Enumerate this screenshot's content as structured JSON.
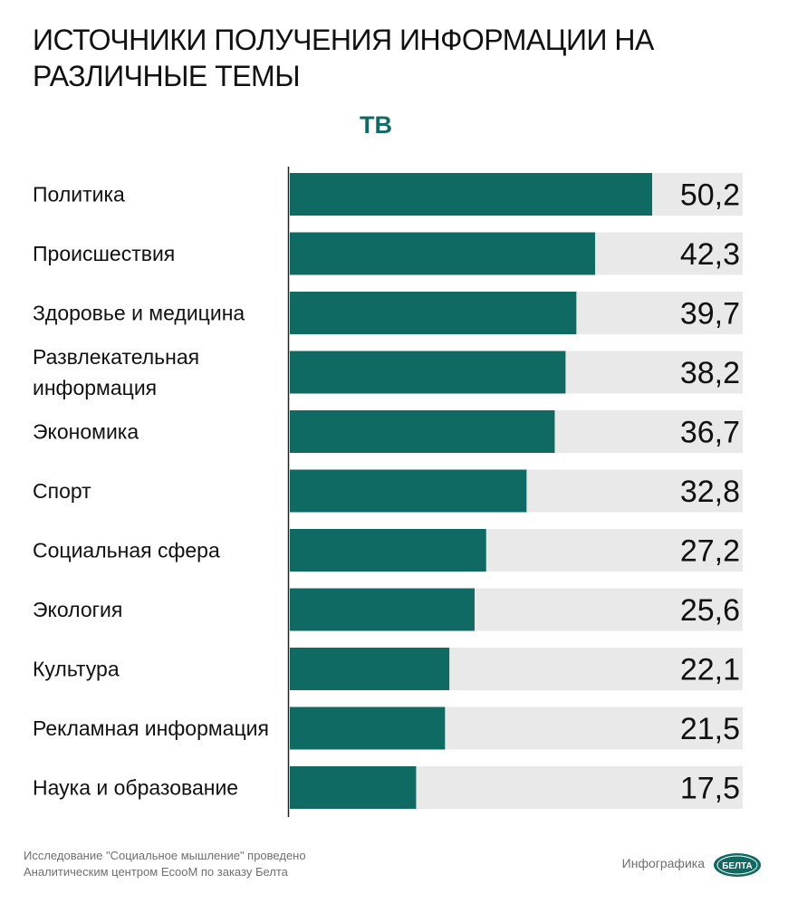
{
  "title": "ИСТОЧНИКИ ПОЛУЧЕНИЯ ИНФОРМАЦИИ НА РАЗЛИЧНЫЕ ТЕМЫ",
  "footer": {
    "note": "Исследование \"Социальное мышление\" проведено Аналитическим центром EcooM по заказу Белта",
    "credit": "Инфографика",
    "logo_text": "БЕЛТА"
  },
  "colors": {
    "bar": "#0e6a63",
    "track": "#e9e9e9",
    "accent": "#0e6a63"
  },
  "chart_data": {
    "type": "bar",
    "orientation": "horizontal",
    "title": "",
    "series": [
      {
        "name": "ТВ",
        "values": [
          50.2,
          42.3,
          39.7,
          38.2,
          36.7,
          32.8,
          27.2,
          25.6,
          22.1,
          21.5,
          17.5
        ],
        "value_labels": [
          "50,2",
          "42,3",
          "39,7",
          "38,2",
          "36,7",
          "32,8",
          "27,2",
          "25,6",
          "22,1",
          "21,5",
          "17,5"
        ]
      }
    ],
    "categories": [
      [
        "Политика"
      ],
      [
        "Происшествия"
      ],
      [
        "Здоровье и медицина"
      ],
      [
        "Развлекательная",
        "информация"
      ],
      [
        "Экономика"
      ],
      [
        "Спорт"
      ],
      [
        "Социальная сфера"
      ],
      [
        "Экология"
      ],
      [
        "Культура"
      ],
      [
        "Рекламная информация"
      ],
      [
        "Наука и образование"
      ]
    ],
    "xlim": [
      0,
      62.5
    ],
    "grid": false,
    "legend": "top"
  }
}
